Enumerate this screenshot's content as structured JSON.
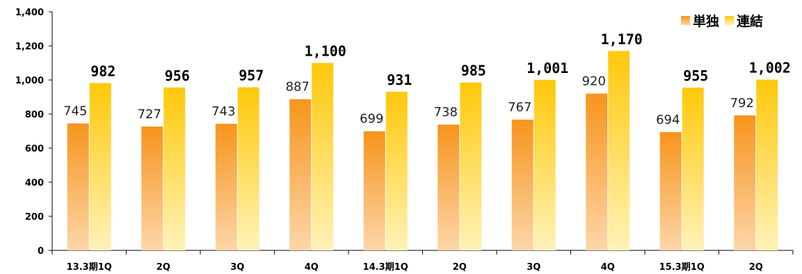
{
  "chart_data": {
    "type": "bar",
    "categories": [
      "13.3期1Q",
      "2Q",
      "3Q",
      "4Q",
      "14.3期1Q",
      "2Q",
      "3Q",
      "4Q",
      "15.3期1Q",
      "2Q"
    ],
    "series": [
      {
        "name": "単独",
        "values": [
          745,
          727,
          743,
          887,
          699,
          738,
          767,
          920,
          694,
          792
        ],
        "labels": [
          "745",
          "727",
          "743",
          "887",
          "699",
          "738",
          "767",
          "920",
          "694",
          "792"
        ],
        "color": "#F7941D"
      },
      {
        "name": "連結",
        "values": [
          982,
          956,
          957,
          1100,
          931,
          985,
          1001,
          1170,
          955,
          1002
        ],
        "labels": [
          "982",
          "956",
          "957",
          "1,100",
          "931",
          "985",
          "1,001",
          "1,170",
          "955",
          "1,002"
        ],
        "color": "#FFCC00"
      }
    ],
    "ylim": [
      0,
      1400
    ],
    "yticks": [
      0,
      200,
      400,
      600,
      800,
      1000,
      1200,
      1400
    ],
    "ytick_labels": [
      "0",
      "200",
      "400",
      "600",
      "800",
      "1,000",
      "1,200",
      "1,400"
    ],
    "legend_position": "top-right",
    "grid": false
  }
}
